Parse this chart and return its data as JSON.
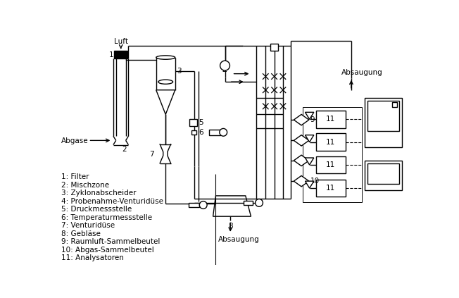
{
  "bg_color": "#ffffff",
  "line_color": "#000000",
  "legend_items": [
    "1: Filter",
    "2: Mischzone",
    "3: Zyklonabscheider",
    "4: Probenahme-Venturidüse",
    "5: Druckmessstelle",
    "6: Temperaturmessstelle",
    "7: Venturidüse",
    "8: Gebläse",
    "9: Raumluft-Sammelbeutel",
    "10: Abgas-Sammelbeutel",
    "11: Analysatoren"
  ],
  "font_size": 7.5
}
